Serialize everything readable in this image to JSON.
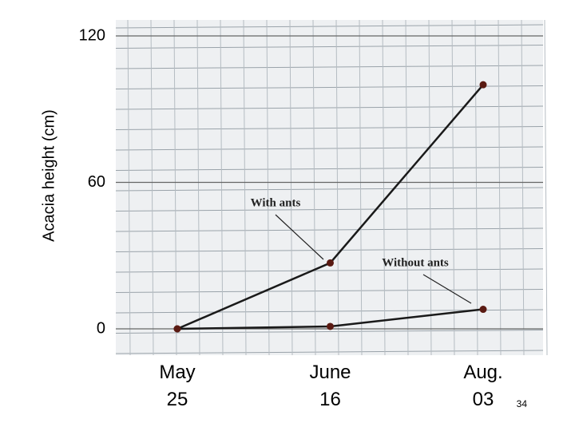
{
  "chart_data": {
    "type": "line",
    "y_label": "Acacia height (cm)",
    "categories": [
      "May 25",
      "June 16",
      "Aug. 03"
    ],
    "series": [
      {
        "name": "With ants",
        "color": "#1a1a1a",
        "values": [
          0,
          27,
          100
        ]
      },
      {
        "name": "Without ants",
        "color": "#1a1a1a",
        "values": [
          0,
          1,
          8
        ]
      }
    ],
    "marker_color": "#5a1a12",
    "ylim": [
      0,
      120
    ],
    "yticks": [
      0,
      60,
      120
    ],
    "grid": true
  },
  "slide_number": "34"
}
